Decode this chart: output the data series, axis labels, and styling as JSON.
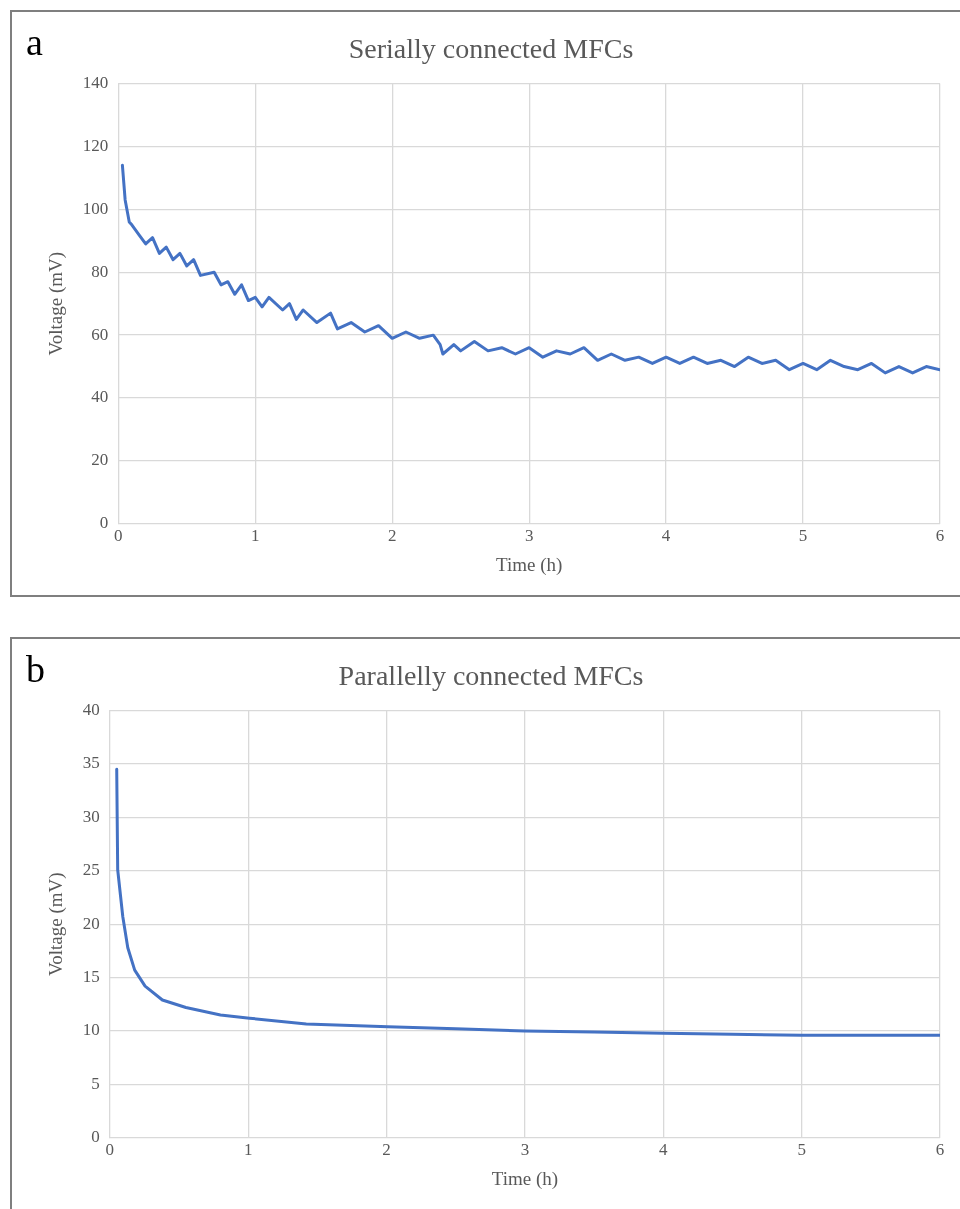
{
  "chart_data": [
    {
      "type": "line",
      "title": "Serially connected MFCs",
      "xlabel": "Time (h)",
      "ylabel": "Voltage (mV)",
      "annotations": [
        "a"
      ],
      "grid": true,
      "legend": false,
      "marker": "none",
      "line_style": "solid",
      "xlim": [
        0,
        6
      ],
      "xticks": [
        0,
        1,
        2,
        3,
        4,
        5,
        6
      ],
      "ylim": [
        0,
        140
      ],
      "yticks": [
        0,
        20,
        40,
        60,
        80,
        100,
        120,
        140
      ],
      "series": [
        {
          "color": "#4472c4",
          "x": [
            0.03,
            0.05,
            0.08,
            0.1,
            0.15,
            0.2,
            0.25,
            0.3,
            0.35,
            0.4,
            0.45,
            0.5,
            0.55,
            0.6,
            0.7,
            0.75,
            0.8,
            0.85,
            0.9,
            0.95,
            1.0,
            1.05,
            1.1,
            1.2,
            1.25,
            1.3,
            1.35,
            1.45,
            1.55,
            1.6,
            1.7,
            1.8,
            1.9,
            2.0,
            2.1,
            2.2,
            2.3,
            2.35,
            2.37,
            2.45,
            2.5,
            2.6,
            2.7,
            2.8,
            2.9,
            3.0,
            3.1,
            3.2,
            3.3,
            3.4,
            3.5,
            3.6,
            3.7,
            3.8,
            3.9,
            4.0,
            4.1,
            4.2,
            4.3,
            4.4,
            4.5,
            4.6,
            4.7,
            4.8,
            4.9,
            5.0,
            5.1,
            5.2,
            5.3,
            5.4,
            5.5,
            5.6,
            5.7,
            5.8,
            5.9,
            6.0
          ],
          "values": [
            114,
            103,
            96,
            95,
            92,
            89,
            91,
            86,
            88,
            84,
            86,
            82,
            84,
            79,
            80,
            76,
            77,
            73,
            76,
            71,
            72,
            69,
            72,
            68,
            70,
            65,
            68,
            64,
            67,
            62,
            64,
            61,
            63,
            59,
            61,
            59,
            60,
            57,
            54,
            57,
            55,
            58,
            55,
            56,
            54,
            56,
            53,
            55,
            54,
            56,
            52,
            54,
            52,
            53,
            51,
            53,
            51,
            53,
            51,
            52,
            50,
            53,
            51,
            52,
            49,
            51,
            49,
            52,
            50,
            49,
            51,
            48,
            50,
            48,
            50,
            49
          ]
        }
      ]
    },
    {
      "type": "line",
      "title": "Parallelly connected MFCs",
      "xlabel": "Time (h)",
      "ylabel": "Voltage (mV)",
      "annotations": [
        "b"
      ],
      "grid": true,
      "legend": false,
      "marker": "none",
      "line_style": "solid",
      "xlim": [
        0,
        6
      ],
      "xticks": [
        0,
        1,
        2,
        3,
        4,
        5,
        6
      ],
      "ylim": [
        0,
        40
      ],
      "yticks": [
        0,
        5,
        10,
        15,
        20,
        25,
        30,
        35,
        40
      ],
      "series": [
        {
          "color": "#4472c4",
          "x": [
            0.05,
            0.057,
            0.094,
            0.13,
            0.18,
            0.255,
            0.38,
            0.55,
            0.8,
            1.01,
            1.42,
            2.01,
            2.5,
            3.0,
            3.5,
            4.0,
            4.5,
            5.0,
            5.5,
            6.0
          ],
          "values": [
            34.5,
            25.1,
            20.7,
            17.8,
            15.7,
            14.2,
            12.9,
            12.2,
            11.5,
            11.2,
            10.65,
            10.4,
            10.2,
            10.0,
            9.9,
            9.8,
            9.7,
            9.6,
            9.6,
            9.6
          ]
        }
      ]
    }
  ]
}
